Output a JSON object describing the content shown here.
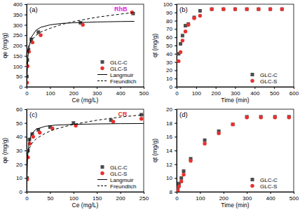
{
  "chart_data": [
    {
      "type": "scatter",
      "title": "(a)",
      "annotations": [
        {
          "text": "RhB",
          "color": "#e619e6"
        }
      ],
      "x_label": "Ce (mg/L)",
      "y_label": "qe (mg/g)",
      "xlim": [
        0,
        500
      ],
      "xticks": [
        0,
        100,
        200,
        300,
        400,
        500
      ],
      "ylim": [
        0,
        400
      ],
      "yticks": [
        0,
        50,
        100,
        150,
        200,
        250,
        300,
        350,
        400
      ],
      "legend": "bottom-right",
      "series": [
        {
          "name": "GLC-C",
          "color": "#4d4d4d",
          "marker": "square",
          "x": [
            1,
            3,
            8,
            20,
            50,
            230,
            455
          ],
          "values": [
            50,
            130,
            180,
            230,
            265,
            310,
            355
          ]
        },
        {
          "name": "GLC-S",
          "color": "#e8312f",
          "marker": "circle",
          "x": [
            2,
            4,
            10,
            25,
            60,
            240,
            450
          ],
          "values": [
            20,
            100,
            170,
            215,
            250,
            300,
            360
          ]
        },
        {
          "name": "Langmuir",
          "type": "line",
          "color": "#000000",
          "line_style": "solid",
          "x": [
            0,
            5,
            10,
            20,
            40,
            60,
            100,
            150,
            200,
            300,
            400,
            460
          ],
          "values": [
            0,
            137,
            192,
            240,
            274,
            288,
            300,
            307,
            310,
            314,
            316,
            317
          ]
        },
        {
          "name": "Freundlich",
          "type": "line",
          "color": "#000000",
          "line_style": "dashed",
          "x": [
            1,
            5,
            10,
            20,
            40,
            60,
            100,
            150,
            200,
            300,
            400,
            460
          ],
          "values": [
            143,
            182,
            202,
            224,
            249,
            265,
            283,
            302,
            316,
            337,
            352,
            360
          ]
        }
      ]
    },
    {
      "type": "scatter",
      "title": "(b)",
      "x_label": "Time (min)",
      "y_label": "qt (mg/g)",
      "xlim": [
        0,
        600
      ],
      "xticks": [
        0,
        100,
        200,
        300,
        400,
        500,
        600
      ],
      "ylim": [
        0,
        100
      ],
      "yticks": [
        0,
        10,
        20,
        30,
        40,
        50,
        60,
        70,
        80,
        90,
        100
      ],
      "legend": "bottom-right",
      "x": [
        10,
        20,
        30,
        45,
        60,
        90,
        120,
        180,
        240,
        300,
        360,
        420,
        480,
        540
      ],
      "series": [
        {
          "name": "GLC-C",
          "color": "#4d4d4d",
          "marker": "square",
          "values": [
            40,
            52,
            62,
            74,
            76,
            84,
            92,
            94,
            94,
            94,
            94,
            94,
            94,
            94
          ]
        },
        {
          "name": "GLC-S",
          "color": "#e8312f",
          "marker": "circle",
          "values": [
            31,
            42,
            56,
            67,
            75,
            83,
            86,
            94,
            94,
            94,
            94,
            94,
            94,
            94
          ]
        }
      ]
    },
    {
      "type": "scatter",
      "title": "(c)",
      "annotations": [
        {
          "text": "CR",
          "color": "#e8312f"
        }
      ],
      "x_label": "Ce (mg/L)",
      "y_label": "qe (mg/g)",
      "xlim": [
        0,
        250
      ],
      "xticks": [
        0,
        50,
        100,
        150,
        200,
        250
      ],
      "ylim": [
        0,
        60
      ],
      "yticks": [
        0,
        10,
        20,
        30,
        40,
        50,
        60
      ],
      "legend": "bottom-right",
      "series": [
        {
          "name": "GLC-C",
          "color": "#4d4d4d",
          "marker": "square",
          "x": [
            1,
            3,
            6,
            12,
            25,
            50,
            100,
            180,
            245
          ],
          "values": [
            10,
            30,
            38,
            42,
            45,
            47,
            50,
            52,
            56
          ]
        },
        {
          "name": "GLC-S",
          "color": "#e8312f",
          "marker": "circle",
          "x": [
            1,
            3,
            7,
            14,
            28,
            55,
            105,
            185,
            245
          ],
          "values": [
            9,
            25,
            35,
            40,
            43,
            46,
            48,
            51,
            53
          ]
        },
        {
          "name": "Langmuir",
          "type": "line",
          "color": "#000000",
          "line_style": "solid",
          "x": [
            0,
            2,
            5,
            10,
            20,
            40,
            60,
            100,
            150,
            200,
            250
          ],
          "values": [
            0,
            25,
            36,
            41.7,
            45.5,
            47.6,
            48.4,
            49,
            49.3,
            49.5,
            49.6
          ]
        },
        {
          "name": "Freundlich",
          "type": "line",
          "color": "#000000",
          "line_style": "dashed",
          "x": [
            1,
            2,
            5,
            10,
            20,
            40,
            60,
            100,
            150,
            200,
            250
          ],
          "values": [
            24.5,
            27,
            31,
            34.6,
            38.4,
            42.6,
            45.4,
            49,
            52,
            54.3,
            56
          ]
        }
      ]
    },
    {
      "type": "scatter",
      "title": "(d)",
      "x_label": "Time (min)",
      "y_label": "qt (mg/g)",
      "xlim": [
        0,
        500
      ],
      "xticks": [
        0,
        100,
        200,
        300,
        400,
        500
      ],
      "ylim": [
        8,
        20
      ],
      "yticks": [
        8,
        10,
        12,
        14,
        16,
        18,
        20
      ],
      "legend": "bottom-right",
      "x": [
        5,
        10,
        20,
        30,
        60,
        120,
        180,
        240,
        300,
        360,
        420,
        480
      ],
      "series": [
        {
          "name": "GLC-C",
          "color": "#4d4d4d",
          "marker": "square",
          "values": [
            8.5,
            9.2,
            10,
            11,
            12.8,
            15.5,
            16.8,
            17.8,
            18.9,
            18.9,
            18.9,
            18.9
          ]
        },
        {
          "name": "GLC-S",
          "color": "#e8312f",
          "marker": "circle",
          "values": [
            8.2,
            8.8,
            9.5,
            10.5,
            12.5,
            15,
            16.5,
            17.8,
            18.8,
            18.8,
            18.8,
            18.8
          ]
        }
      ]
    }
  ]
}
